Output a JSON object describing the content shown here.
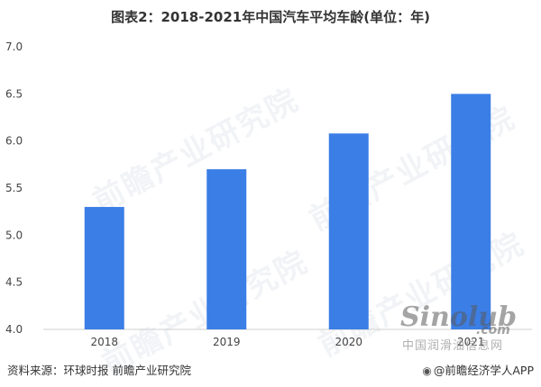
{
  "chart_data": {
    "type": "bar",
    "title": "图表2：2018-2021年中国汽车平均车龄(单位：年)",
    "categories": [
      "2018",
      "2019",
      "2020",
      "2021"
    ],
    "values": [
      5.3,
      5.7,
      6.08,
      6.5
    ],
    "ylim": [
      4.0,
      7.0
    ],
    "yticks": [
      "4.0",
      "4.5",
      "5.0",
      "5.5",
      "6.0",
      "6.5",
      "7.0"
    ],
    "grid": false,
    "bar_color": "#3b7ee6"
  },
  "footer": {
    "source": "资料来源：环球时报 前瞻产业研究院",
    "brand": "@前瞻经济学人APP",
    "brand_icon": "qianzhan-logo-icon"
  },
  "watermarks": {
    "text": "前瞻产业研究院",
    "stamp_brand": "Sinolub",
    "stamp_com": ".com",
    "stamp_site": "中国润滑油信息网"
  }
}
